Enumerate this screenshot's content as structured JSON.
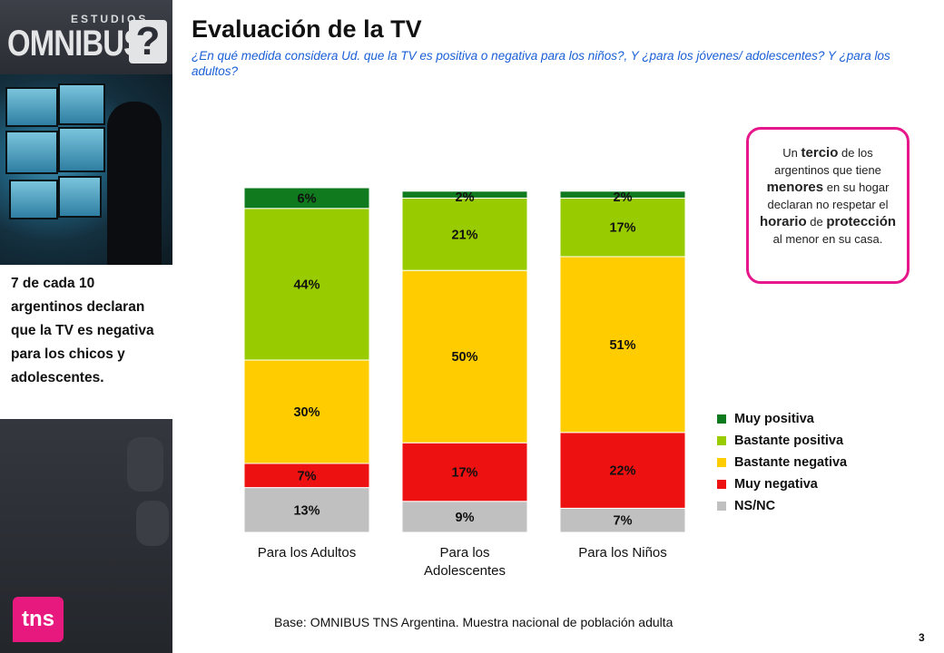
{
  "brand": {
    "small": "ESTUDIOS",
    "big": "OMNIBUS",
    "q": "?"
  },
  "tns_logo": "tns",
  "title": "Evaluación de la TV",
  "subtitle": "¿En qué medida considera Ud. que la TV es positiva o negativa para los niños?, Y ¿para los jóvenes/ adolescentes? Y ¿para los adultos?",
  "left_callout": "7 de cada 10 argentinos declaran que la TV es negativa para los chicos y adolescentes.",
  "right_callout": {
    "parts": [
      {
        "text": "Un ",
        "bold": false
      },
      {
        "text": "tercio",
        "bold": true
      },
      {
        "text": " de los argentinos que tiene ",
        "bold": false
      },
      {
        "text": "menores",
        "bold": true
      },
      {
        "text": " en su hogar declaran no respetar el ",
        "bold": false
      },
      {
        "text": "horario",
        "bold": true
      },
      {
        "text": " de ",
        "bold": false
      },
      {
        "text": "protección",
        "bold": true
      },
      {
        "text": " al menor en su casa.",
        "bold": false
      }
    ]
  },
  "base_note": "Base: OMNIBUS TNS Argentina. Muestra nacional de población adulta",
  "page_number": "3",
  "colors": {
    "muy_positiva": "#0f7a1e",
    "bastante_positiva": "#99cc00",
    "bastante_negativa": "#ffcc00",
    "muy_negativa": "#ee1111",
    "nsnc": "#c0c0c0",
    "accent_pink": "#e5178a"
  },
  "chart_data": {
    "type": "bar",
    "stacked": true,
    "categories": [
      [
        "Para los Adultos"
      ],
      [
        "Para los",
        "Adolescentes"
      ],
      [
        "Para los Niños"
      ]
    ],
    "series": [
      {
        "name": "NS/NC",
        "values": [
          13,
          9,
          7
        ],
        "labels": [
          "13%",
          "9%",
          "7%"
        ]
      },
      {
        "name": "Muy negativa",
        "values": [
          7,
          17,
          22
        ],
        "labels": [
          "7%",
          "17%",
          "22%"
        ]
      },
      {
        "name": "Bastante negativa",
        "values": [
          30,
          50,
          51
        ],
        "labels": [
          "30%",
          "50%",
          "51%"
        ]
      },
      {
        "name": "Bastante positiva",
        "values": [
          44,
          21,
          17
        ],
        "labels": [
          "44%",
          "21%",
          "17%"
        ]
      },
      {
        "name": "Muy positiva",
        "values": [
          6,
          2,
          2
        ],
        "labels": [
          "6%",
          "2%",
          "2%"
        ]
      }
    ],
    "legend_order": [
      "Muy positiva",
      "Bastante positiva",
      "Bastante negativa",
      "Muy negativa",
      "NS/NC"
    ],
    "legend_position": "right",
    "grid": false,
    "ylim": [
      0,
      100
    ]
  }
}
